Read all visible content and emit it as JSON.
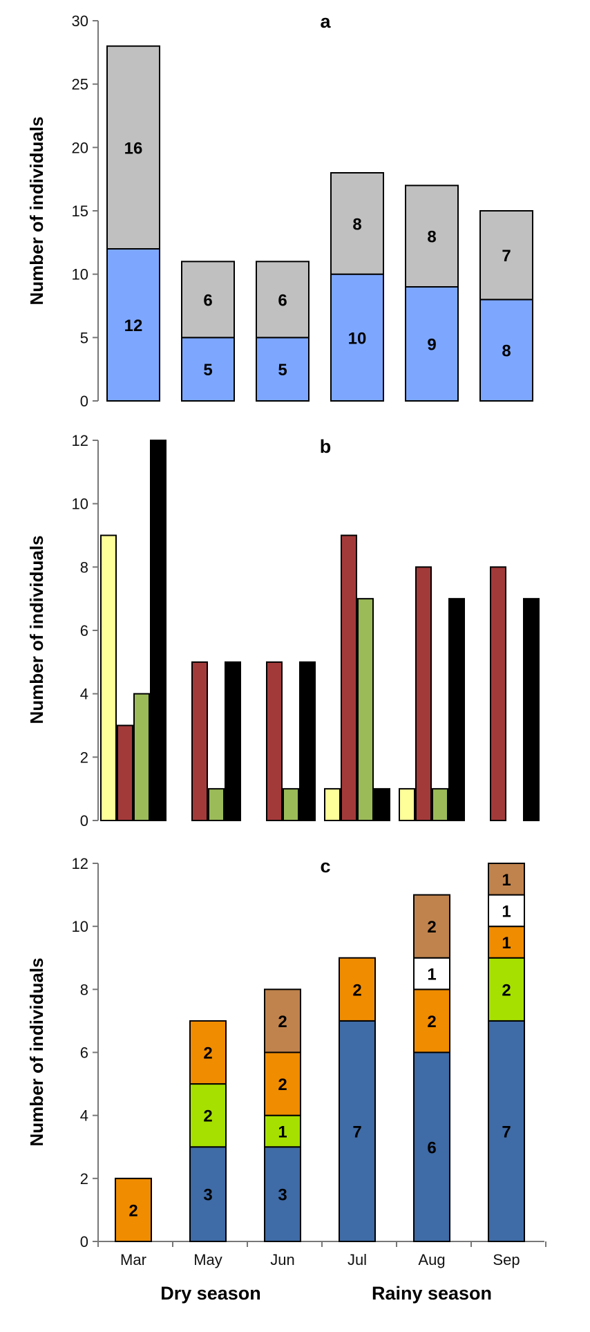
{
  "chart_data": [
    {
      "id": "a",
      "type": "bar",
      "stacked": true,
      "title": "a",
      "ylabel": "Number of individuals",
      "ylim": [
        0,
        30
      ],
      "yticks": [
        0,
        5,
        10,
        15,
        20,
        25,
        30
      ],
      "categories": [
        "Mar",
        "May",
        "Jun",
        "Jul",
        "Aug",
        "Sep"
      ],
      "series": [
        {
          "values": [
            12,
            5,
            5,
            10,
            9,
            8
          ],
          "color": "#7da7ff"
        },
        {
          "values": [
            16,
            6,
            6,
            8,
            8,
            7
          ],
          "color": "#c0c0c0"
        }
      ]
    },
    {
      "id": "b",
      "type": "bar",
      "stacked": false,
      "title": "b",
      "ylabel": "Number of individuals",
      "ylim": [
        0,
        12
      ],
      "yticks": [
        0,
        2,
        4,
        6,
        8,
        10,
        12
      ],
      "categories": [
        "Mar",
        "May",
        "Jun",
        "Jul",
        "Aug",
        "Sep"
      ],
      "series": [
        {
          "values": [
            9,
            0,
            0,
            1,
            1,
            0
          ],
          "color": "#ffff99"
        },
        {
          "values": [
            3,
            5,
            5,
            9,
            8,
            8
          ],
          "color": "#a33a3a"
        },
        {
          "values": [
            4,
            1,
            1,
            7,
            1,
            0
          ],
          "color": "#9bbb59"
        },
        {
          "values": [
            12,
            5,
            5,
            1,
            7,
            7
          ],
          "color": "#000000"
        }
      ]
    },
    {
      "id": "c",
      "type": "bar",
      "stacked": true,
      "title": "c",
      "ylabel": "Number of individuals",
      "ylim": [
        0,
        12
      ],
      "yticks": [
        0,
        2,
        4,
        6,
        8,
        10,
        12
      ],
      "categories": [
        "Mar",
        "May",
        "Jun",
        "Jul",
        "Aug",
        "Sep"
      ],
      "series": [
        {
          "values": [
            0,
            3,
            3,
            7,
            6,
            7
          ],
          "color": "#3f6ba6"
        },
        {
          "values": [
            0,
            2,
            1,
            0,
            0,
            2
          ],
          "color": "#a6e000"
        },
        {
          "values": [
            2,
            2,
            2,
            2,
            2,
            1
          ],
          "color": "#f08c00"
        },
        {
          "values": [
            0,
            0,
            0,
            0,
            1,
            1
          ],
          "color": "#ffffff"
        },
        {
          "values": [
            0,
            0,
            2,
            0,
            2,
            1
          ],
          "color": "#c0834d"
        }
      ]
    }
  ],
  "season_labels": {
    "dry": "Dry season",
    "rainy": "Rainy season"
  }
}
